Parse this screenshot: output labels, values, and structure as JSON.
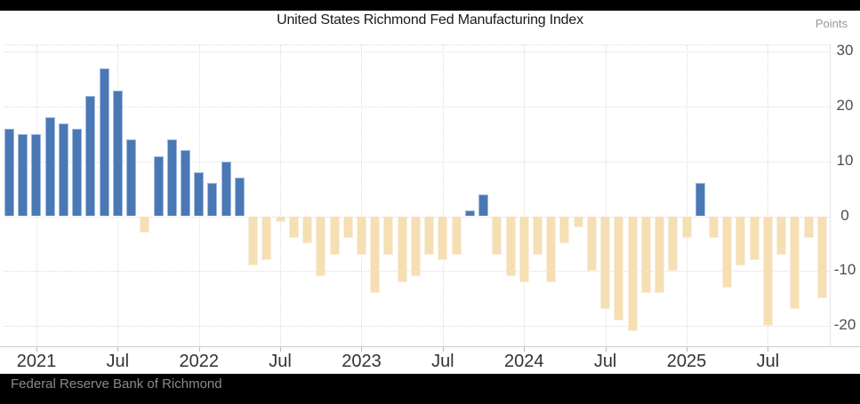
{
  "attribution": {
    "text": "Federal Reserve Bank of Richmond"
  },
  "chart_data": {
    "type": "bar",
    "title": "United States Richmond Fed Manufacturing Index",
    "unit_label": "Points",
    "xlabel": "",
    "ylabel": "Points",
    "ylim": [
      -24,
      31
    ],
    "grid": "dotted",
    "legend": "none",
    "y_ticks": [
      30,
      20,
      10,
      0,
      -10,
      -20
    ],
    "x_axis_labels": [
      {
        "text": "2021",
        "month_index": 2
      },
      {
        "text": "Jul",
        "month_index": 8
      },
      {
        "text": "2022",
        "month_index": 14
      },
      {
        "text": "Jul",
        "month_index": 20
      },
      {
        "text": "2023",
        "month_index": 26
      },
      {
        "text": "Jul",
        "month_index": 32
      },
      {
        "text": "2024",
        "month_index": 38
      },
      {
        "text": "Jul",
        "month_index": 44
      },
      {
        "text": "2025",
        "month_index": 50
      },
      {
        "text": "Jul",
        "month_index": 56
      }
    ],
    "categories": [
      "Nov 2020",
      "Dec 2020",
      "Jan 2021",
      "Feb 2021",
      "Mar 2021",
      "Apr 2021",
      "May 2021",
      "Jun 2021",
      "Jul 2021",
      "Aug 2021",
      "Sep 2021",
      "Oct 2021",
      "Nov 2021",
      "Dec 2021",
      "Jan 2022",
      "Feb 2022",
      "Mar 2022",
      "Apr 2022",
      "May 2022",
      "Jun 2022",
      "Jul 2022",
      "Aug 2022",
      "Sep 2022",
      "Oct 2022",
      "Nov 2022",
      "Dec 2022",
      "Jan 2023",
      "Feb 2023",
      "Mar 2023",
      "Apr 2023",
      "May 2023",
      "Jun 2023",
      "Jul 2023",
      "Aug 2023",
      "Sep 2023",
      "Oct 2023",
      "Nov 2023",
      "Dec 2023",
      "Jan 2024",
      "Feb 2024",
      "Mar 2024",
      "Apr 2024",
      "May 2024",
      "Jun 2024",
      "Jul 2024",
      "Aug 2024",
      "Sep 2024",
      "Oct 2024",
      "Nov 2024",
      "Dec 2024",
      "Jan 2025",
      "Feb 2025",
      "Mar 2025",
      "Apr 2025",
      "May 2025",
      "Jun 2025",
      "Jul 2025",
      "Aug 2025",
      "Sep 2025",
      "Oct 2025",
      "Nov 2025"
    ],
    "values": [
      16,
      15,
      15,
      18,
      17,
      16,
      22,
      27,
      23,
      14,
      -3,
      11,
      14,
      12,
      8,
      6,
      10,
      7,
      -9,
      -8,
      -1,
      -4,
      -5,
      -11,
      -7,
      -4,
      -7,
      -14,
      -7,
      -12,
      -11,
      -7,
      -8,
      -7,
      1,
      4,
      -7,
      -11,
      -12,
      -7,
      -12,
      -5,
      -2,
      -10,
      -17,
      -19,
      -21,
      -14,
      -14,
      -10,
      -4,
      6,
      -4,
      -13,
      -9,
      -8,
      -20,
      -7,
      -17,
      -4,
      -15
    ],
    "colors": {
      "positive_bar": "#4a78b5",
      "positive_bar_stroke": "#9fbbdd",
      "negative_bar": "#f5dfb3",
      "negative_bar_stroke": "#faeedd",
      "gridline": "#dcdcdc",
      "axis_line": "#cccccc",
      "x_label": "#333333",
      "y_label": "#4d4d4d",
      "title": "#1a1a1a",
      "unit_label": "#999999",
      "attribution": "#8a8a8a",
      "frame": "#000000",
      "background": "#ffffff"
    }
  }
}
